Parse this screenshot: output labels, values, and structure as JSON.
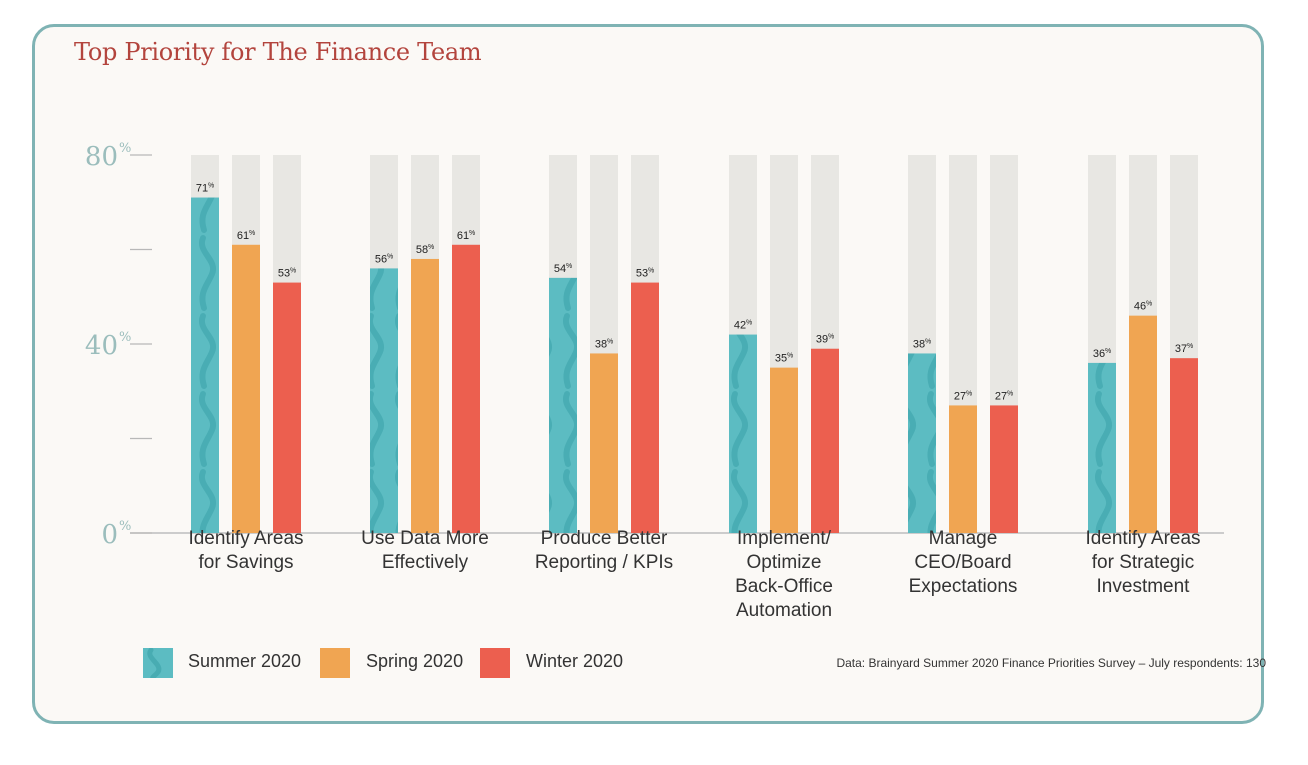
{
  "chart_data": {
    "type": "bar",
    "title": "Top Priority for The Finance Team",
    "categories": [
      "Identify Areas for Savings",
      "Use Data More Effectively",
      "Produce Better Reporting / KPIs",
      "Implement/ Optimize Back-Office Automation",
      "Manage CEO/Board Expectations",
      "Identify Areas for Strategic Investment"
    ],
    "category_lines": [
      [
        "Identify Areas",
        "for Savings"
      ],
      [
        "Use Data More",
        "Effectively"
      ],
      [
        "Produce Better",
        "Reporting / KPIs"
      ],
      [
        "Implement/",
        "Optimize",
        "Back-Office",
        "Automation"
      ],
      [
        "Manage",
        "CEO/Board",
        "Expectations"
      ],
      [
        "Identify Areas",
        "for Strategic",
        "Investment"
      ]
    ],
    "series": [
      {
        "name": "Summer 2020",
        "color": "#5cbcc2",
        "values": [
          71,
          56,
          54,
          42,
          38,
          36
        ]
      },
      {
        "name": "Spring 2020",
        "color": "#f0a552",
        "values": [
          61,
          58,
          38,
          35,
          27,
          46
        ]
      },
      {
        "name": "Winter 2020",
        "color": "#ec5f4f",
        "values": [
          53,
          61,
          53,
          39,
          27,
          37
        ]
      }
    ],
    "ylim": [
      0,
      80
    ],
    "yticks": [
      {
        "value": 0,
        "label": "0",
        "unit": "%"
      },
      {
        "value": 40,
        "label": "40",
        "unit": "%"
      },
      {
        "value": 80,
        "label": "80",
        "unit": "%"
      }
    ],
    "value_suffix": "%",
    "background_bar_color": "#e8e7e3",
    "xlabel": "",
    "ylabel": "",
    "legend_position": "bottom-left"
  },
  "source_note": "Data: Brainyard Summer 2020 Finance Priorities Survey – July respondents: 130"
}
